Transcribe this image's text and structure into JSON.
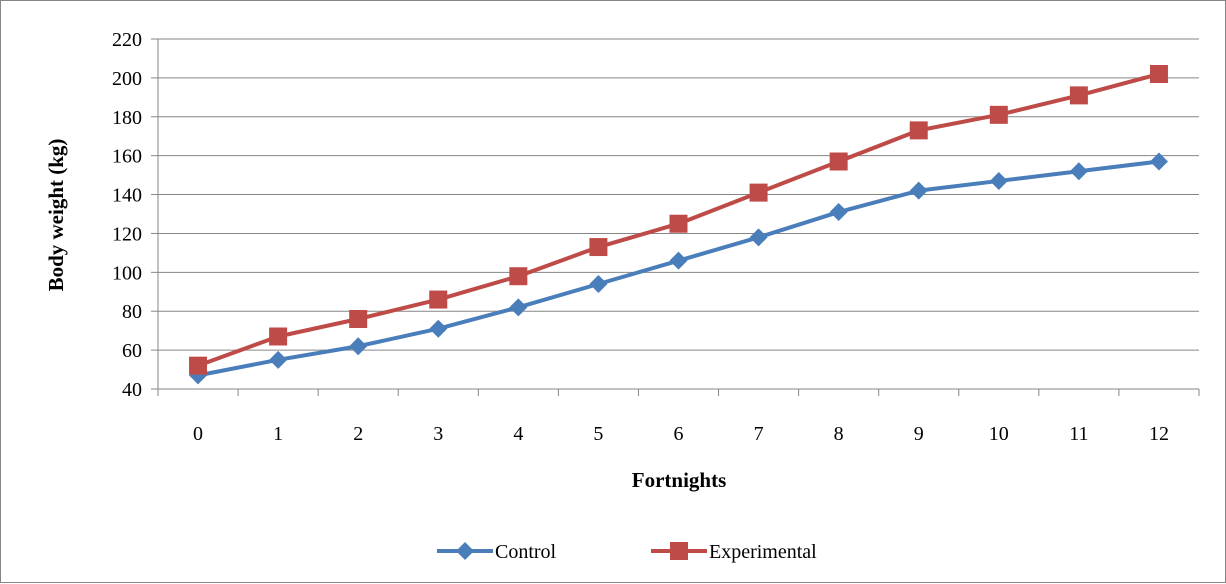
{
  "chart_data": {
    "type": "line",
    "title": "",
    "xlabel": "Fortnights",
    "ylabel": "Body weight (kg)",
    "categories": [
      "0",
      "1",
      "2",
      "3",
      "4",
      "5",
      "6",
      "7",
      "8",
      "9",
      "10",
      "11",
      "12"
    ],
    "ylim": [
      40,
      220
    ],
    "yticks": [
      "40",
      "60",
      "80",
      "100",
      "120",
      "140",
      "160",
      "180",
      "200",
      "220"
    ],
    "grid": true,
    "legend_position": "bottom",
    "series": [
      {
        "name": "Control",
        "color": "#4a7ebb",
        "marker": "diamond",
        "values": [
          47,
          55,
          62,
          71,
          82,
          94,
          106,
          118,
          131,
          142,
          147,
          152,
          157
        ]
      },
      {
        "name": "Experimental",
        "color": "#be4b48",
        "marker": "square",
        "values": [
          52,
          67,
          76,
          86,
          98,
          113,
          125,
          141,
          157,
          173,
          181,
          191,
          202
        ]
      }
    ]
  }
}
